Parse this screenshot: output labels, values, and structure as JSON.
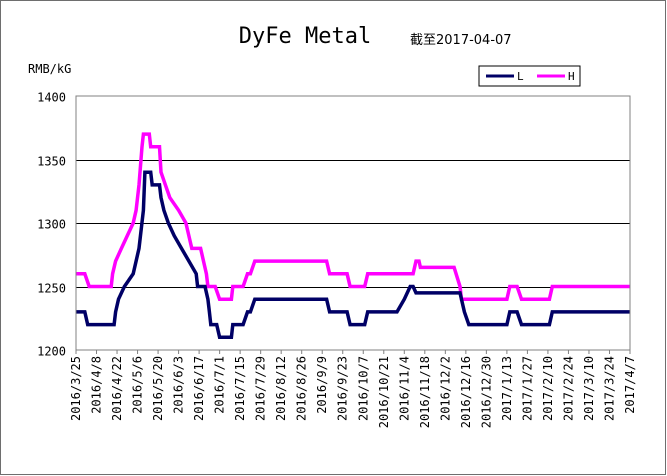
{
  "chart_data": {
    "type": "line",
    "title": "DyFe Metal",
    "subtitle": "截至2017-04-07",
    "ylabel": "RMB/kG",
    "xlabel": "",
    "ylim": [
      1200,
      1400
    ],
    "yticks": [
      1200,
      1250,
      1300,
      1350,
      1400
    ],
    "grid": true,
    "legend": "top-right",
    "x_start": "2016/3/25",
    "x_end": "2017/4/7",
    "x_tick_labels": [
      "2016/3/25",
      "2016/4/8",
      "2016/4/22",
      "2016/5/6",
      "2016/5/20",
      "2016/6/3",
      "2016/6/17",
      "2016/7/1",
      "2016/7/15",
      "2016/7/29",
      "2016/8/12",
      "2016/8/26",
      "2016/9/9",
      "2016/9/23",
      "2016/10/7",
      "2016/10/21",
      "2016/11/4",
      "2016/11/18",
      "2016/12/2",
      "2016/12/16",
      "2016/12/30",
      "2017/1/13",
      "2017/1/27",
      "2017/2/10",
      "2017/2/24",
      "2017/3/10",
      "2017/3/24",
      "2017/4/7"
    ],
    "series": [
      {
        "name": "L",
        "color": "#000066",
        "points": [
          [
            "2016/3/25",
            1230
          ],
          [
            "2016/3/31",
            1230
          ],
          [
            "2016/4/2",
            1220
          ],
          [
            "2016/4/20",
            1220
          ],
          [
            "2016/4/21",
            1230
          ],
          [
            "2016/4/23",
            1240
          ],
          [
            "2016/4/27",
            1250
          ],
          [
            "2016/5/3",
            1260
          ],
          [
            "2016/5/5",
            1270
          ],
          [
            "2016/5/7",
            1280
          ],
          [
            "2016/5/10",
            1310
          ],
          [
            "2016/5/11",
            1340
          ],
          [
            "2016/5/15",
            1340
          ],
          [
            "2016/5/16",
            1330
          ],
          [
            "2016/5/21",
            1330
          ],
          [
            "2016/5/22",
            1320
          ],
          [
            "2016/5/24",
            1310
          ],
          [
            "2016/5/27",
            1300
          ],
          [
            "2016/5/31",
            1290
          ],
          [
            "2016/6/5",
            1280
          ],
          [
            "2016/6/10",
            1270
          ],
          [
            "2016/6/15",
            1260
          ],
          [
            "2016/6/16",
            1250
          ],
          [
            "2016/6/21",
            1250
          ],
          [
            "2016/6/23",
            1240
          ],
          [
            "2016/6/24",
            1230
          ],
          [
            "2016/6/25",
            1220
          ],
          [
            "2016/6/29",
            1220
          ],
          [
            "2016/7/1",
            1210
          ],
          [
            "2016/7/9",
            1210
          ],
          [
            "2016/7/10",
            1220
          ],
          [
            "2016/7/17",
            1220
          ],
          [
            "2016/7/20",
            1230
          ],
          [
            "2016/7/22",
            1230
          ],
          [
            "2016/7/25",
            1240
          ],
          [
            "2016/9/12",
            1240
          ],
          [
            "2016/9/14",
            1230
          ],
          [
            "2016/9/26",
            1230
          ],
          [
            "2016/9/28",
            1220
          ],
          [
            "2016/10/8",
            1220
          ],
          [
            "2016/10/10",
            1230
          ],
          [
            "2016/10/30",
            1230
          ],
          [
            "2016/11/4",
            1240
          ],
          [
            "2016/11/8",
            1250
          ],
          [
            "2016/11/10",
            1250
          ],
          [
            "2016/11/12",
            1245
          ],
          [
            "2016/12/12",
            1245
          ],
          [
            "2016/12/15",
            1230
          ],
          [
            "2016/12/18",
            1220
          ],
          [
            "2017/1/13",
            1220
          ],
          [
            "2017/1/15",
            1230
          ],
          [
            "2017/1/20",
            1230
          ],
          [
            "2017/1/23",
            1220
          ],
          [
            "2017/2/11",
            1220
          ],
          [
            "2017/2/13",
            1230
          ],
          [
            "2017/4/7",
            1230
          ]
        ]
      },
      {
        "name": "H",
        "color": "#ff00ff",
        "points": [
          [
            "2016/3/25",
            1260
          ],
          [
            "2016/3/31",
            1260
          ],
          [
            "2016/4/3",
            1250
          ],
          [
            "2016/4/18",
            1250
          ],
          [
            "2016/4/19",
            1260
          ],
          [
            "2016/4/21",
            1270
          ],
          [
            "2016/4/25",
            1280
          ],
          [
            "2016/5/3",
            1300
          ],
          [
            "2016/5/5",
            1310
          ],
          [
            "2016/5/7",
            1330
          ],
          [
            "2016/5/9",
            1360
          ],
          [
            "2016/5/10",
            1370
          ],
          [
            "2016/5/14",
            1370
          ],
          [
            "2016/5/15",
            1360
          ],
          [
            "2016/5/21",
            1360
          ],
          [
            "2016/5/22",
            1340
          ],
          [
            "2016/5/25",
            1330
          ],
          [
            "2016/5/28",
            1320
          ],
          [
            "2016/6/3",
            1310
          ],
          [
            "2016/6/8",
            1300
          ],
          [
            "2016/6/12",
            1280
          ],
          [
            "2016/6/18",
            1280
          ],
          [
            "2016/6/20",
            1270
          ],
          [
            "2016/6/22",
            1260
          ],
          [
            "2016/6/23",
            1250
          ],
          [
            "2016/6/28",
            1250
          ],
          [
            "2016/7/1",
            1240
          ],
          [
            "2016/7/9",
            1240
          ],
          [
            "2016/7/10",
            1250
          ],
          [
            "2016/7/17",
            1250
          ],
          [
            "2016/7/20",
            1260
          ],
          [
            "2016/7/22",
            1260
          ],
          [
            "2016/7/25",
            1270
          ],
          [
            "2016/9/12",
            1270
          ],
          [
            "2016/9/14",
            1260
          ],
          [
            "2016/9/26",
            1260
          ],
          [
            "2016/9/28",
            1250
          ],
          [
            "2016/10/8",
            1250
          ],
          [
            "2016/10/10",
            1260
          ],
          [
            "2016/11/10",
            1260
          ],
          [
            "2016/11/12",
            1270
          ],
          [
            "2016/11/14",
            1270
          ],
          [
            "2016/11/15",
            1265
          ],
          [
            "2016/12/8",
            1265
          ],
          [
            "2016/12/12",
            1250
          ],
          [
            "2016/12/13",
            1240
          ],
          [
            "2017/1/13",
            1240
          ],
          [
            "2017/1/15",
            1250
          ],
          [
            "2017/1/20",
            1250
          ],
          [
            "2017/1/23",
            1240
          ],
          [
            "2017/2/11",
            1240
          ],
          [
            "2017/2/13",
            1250
          ],
          [
            "2017/4/7",
            1250
          ]
        ]
      }
    ]
  }
}
